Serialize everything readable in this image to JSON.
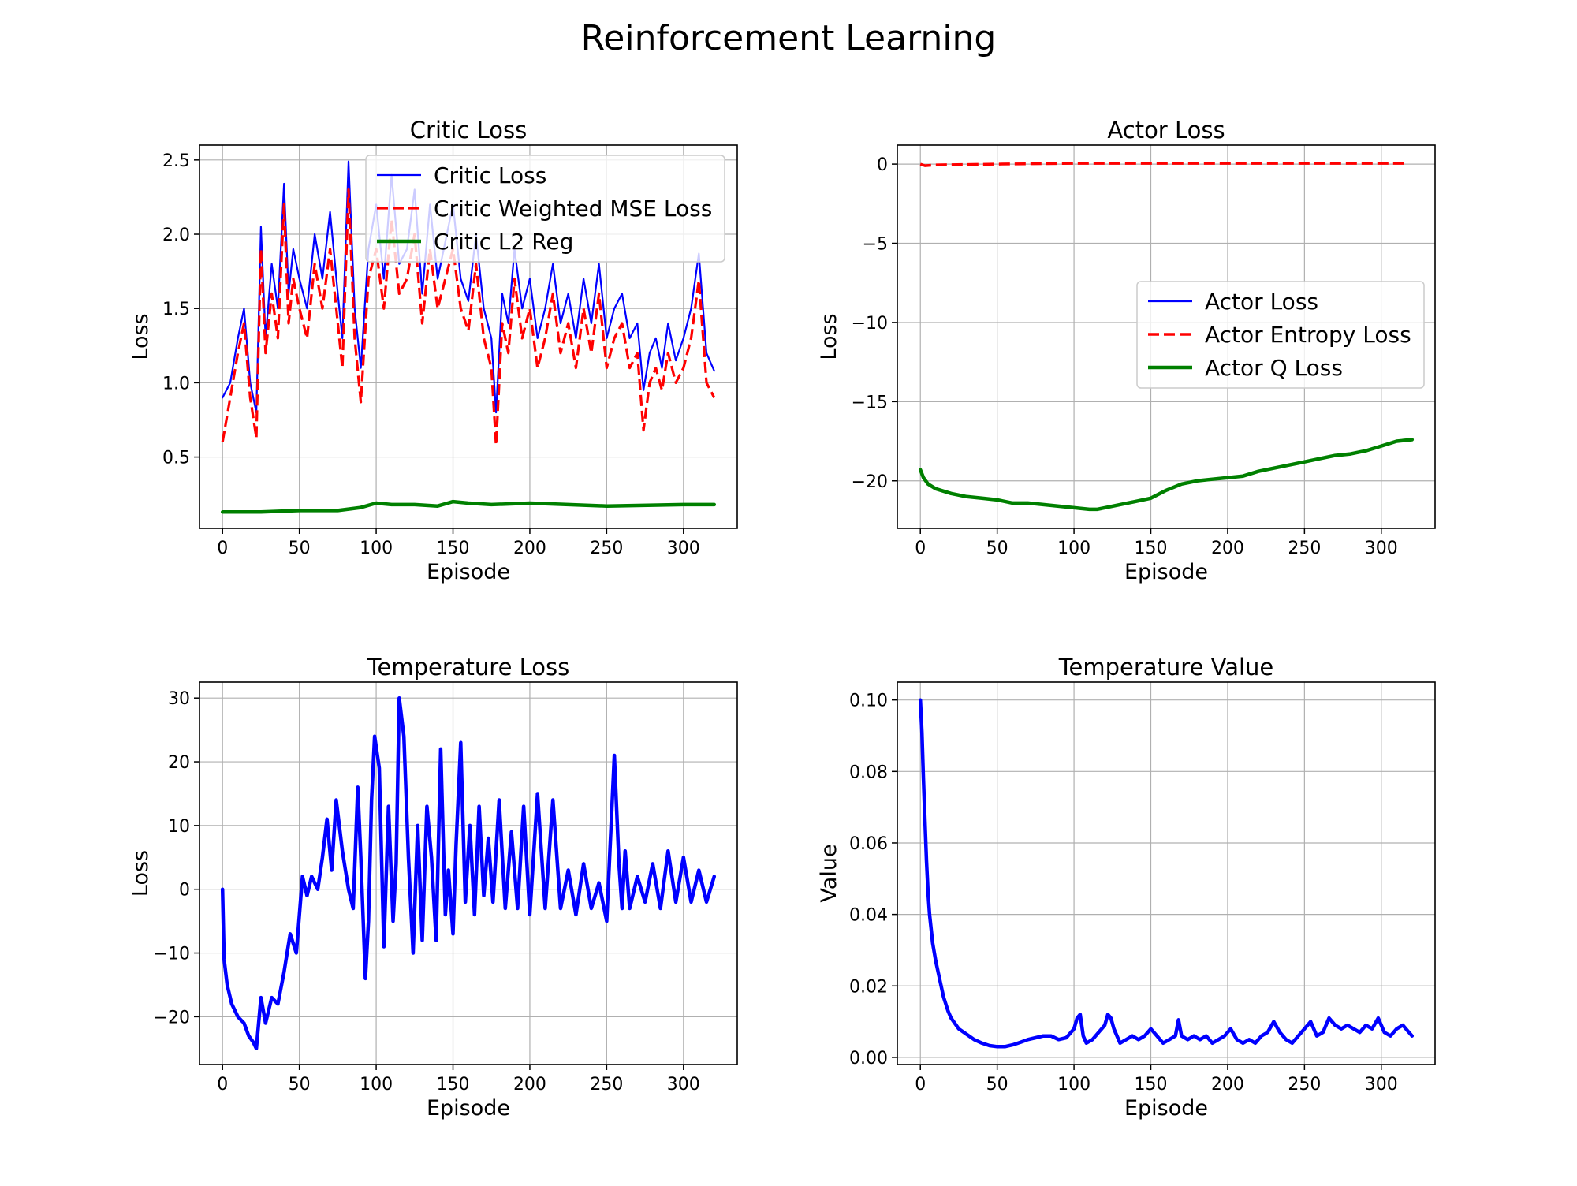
{
  "figure": {
    "title": "Reinforcement Learning"
  },
  "chart_data": [
    {
      "type": "line",
      "title": "Critic Loss",
      "xlabel": "Episode",
      "ylabel": "Loss",
      "xlim": [
        -15,
        335
      ],
      "ylim": [
        0.02,
        2.6
      ],
      "xticks": [
        0,
        50,
        100,
        150,
        200,
        250,
        300
      ],
      "yticks": [
        0.5,
        1.0,
        1.5,
        2.0,
        2.5
      ],
      "ytick_labels": [
        "0.5",
        "1.0",
        "1.5",
        "2.0",
        "2.5"
      ],
      "grid": true,
      "legend": "top-right",
      "series": [
        {
          "name": "Critic Loss",
          "color": "#0000ff",
          "style": "solid",
          "width": 2.2,
          "x": [
            0,
            5,
            10,
            14,
            18,
            22,
            25,
            28,
            32,
            36,
            40,
            43,
            46,
            50,
            55,
            60,
            65,
            70,
            75,
            78,
            82,
            86,
            90,
            95,
            100,
            105,
            110,
            115,
            120,
            125,
            130,
            135,
            140,
            145,
            150,
            155,
            160,
            165,
            170,
            175,
            178,
            182,
            186,
            190,
            195,
            200,
            205,
            210,
            215,
            220,
            225,
            230,
            235,
            240,
            245,
            250,
            255,
            260,
            265,
            270,
            274,
            278,
            282,
            286,
            290,
            295,
            300,
            305,
            310,
            315,
            320
          ],
          "y": [
            0.9,
            1.0,
            1.3,
            1.5,
            1.0,
            0.8,
            2.05,
            1.3,
            1.8,
            1.5,
            2.34,
            1.6,
            1.9,
            1.7,
            1.5,
            2.0,
            1.7,
            2.15,
            1.6,
            1.3,
            2.49,
            1.5,
            1.1,
            1.9,
            2.2,
            1.7,
            2.4,
            1.8,
            1.9,
            2.3,
            1.6,
            2.2,
            1.7,
            1.95,
            2.2,
            1.7,
            1.55,
            2.0,
            1.5,
            1.3,
            0.8,
            1.6,
            1.4,
            1.9,
            1.5,
            1.7,
            1.3,
            1.5,
            1.8,
            1.4,
            1.6,
            1.3,
            1.7,
            1.4,
            1.8,
            1.3,
            1.5,
            1.6,
            1.3,
            1.4,
            0.95,
            1.2,
            1.3,
            1.1,
            1.4,
            1.15,
            1.3,
            1.5,
            1.87,
            1.2,
            1.08
          ]
        },
        {
          "name": "Critic Weighted MSE Loss",
          "color": "#ff0000",
          "style": "dashed",
          "width": 3.2,
          "x": [
            0,
            5,
            10,
            14,
            18,
            22,
            25,
            28,
            32,
            36,
            40,
            43,
            46,
            50,
            55,
            60,
            65,
            70,
            75,
            78,
            82,
            86,
            90,
            95,
            100,
            105,
            110,
            115,
            120,
            125,
            130,
            135,
            140,
            145,
            150,
            155,
            160,
            165,
            170,
            175,
            178,
            182,
            186,
            190,
            195,
            200,
            205,
            210,
            215,
            220,
            225,
            230,
            235,
            240,
            245,
            250,
            255,
            260,
            265,
            270,
            274,
            278,
            282,
            286,
            290,
            295,
            300,
            305,
            310,
            315,
            320
          ],
          "y": [
            0.6,
            0.9,
            1.2,
            1.4,
            0.9,
            0.63,
            1.9,
            1.2,
            1.6,
            1.3,
            2.2,
            1.4,
            1.7,
            1.5,
            1.3,
            1.8,
            1.5,
            1.9,
            1.4,
            1.1,
            2.3,
            1.3,
            0.87,
            1.7,
            1.9,
            1.5,
            2.1,
            1.6,
            1.7,
            2.0,
            1.4,
            1.9,
            1.5,
            1.7,
            1.9,
            1.5,
            1.35,
            1.8,
            1.3,
            1.1,
            0.58,
            1.4,
            1.2,
            1.7,
            1.3,
            1.5,
            1.1,
            1.3,
            1.6,
            1.2,
            1.4,
            1.1,
            1.5,
            1.2,
            1.6,
            1.1,
            1.3,
            1.4,
            1.1,
            1.2,
            0.68,
            1.0,
            1.1,
            0.95,
            1.2,
            1.0,
            1.1,
            1.3,
            1.69,
            1.0,
            0.9
          ]
        },
        {
          "name": "Critic L2 Reg",
          "color": "#008000",
          "style": "solid",
          "width": 4.5,
          "x": [
            0,
            25,
            50,
            75,
            90,
            100,
            110,
            125,
            140,
            150,
            160,
            175,
            200,
            250,
            300,
            320
          ],
          "y": [
            0.13,
            0.13,
            0.14,
            0.14,
            0.16,
            0.19,
            0.18,
            0.18,
            0.17,
            0.2,
            0.19,
            0.18,
            0.19,
            0.17,
            0.18,
            0.18
          ]
        }
      ]
    },
    {
      "type": "line",
      "title": "Actor Loss",
      "xlabel": "Episode",
      "ylabel": "Loss",
      "xlim": [
        -15,
        335
      ],
      "ylim": [
        -23,
        1.2
      ],
      "xticks": [
        0,
        50,
        100,
        150,
        200,
        250,
        300
      ],
      "yticks": [
        0,
        -5,
        -10,
        -15,
        -20
      ],
      "ytick_labels": [
        "0",
        "−5",
        "−10",
        "−15",
        "−20"
      ],
      "grid": true,
      "legend": "center-right",
      "series": [
        {
          "name": "Actor Loss",
          "color": "#0000ff",
          "style": "solid",
          "width": 2.2,
          "x": [
            0,
            2,
            5,
            10,
            20,
            30,
            40,
            50,
            60,
            70,
            80,
            90,
            100,
            110,
            115,
            120,
            130,
            140,
            150,
            160,
            170,
            180,
            190,
            200,
            210,
            220,
            230,
            240,
            250,
            260,
            270,
            280,
            290,
            300,
            310,
            320
          ],
          "y": [
            -19.3,
            -19.8,
            -20.2,
            -20.5,
            -20.8,
            -21.0,
            -21.1,
            -21.2,
            -21.4,
            -21.4,
            -21.5,
            -21.6,
            -21.7,
            -21.8,
            -21.8,
            -21.7,
            -21.5,
            -21.3,
            -21.1,
            -20.6,
            -20.2,
            -20.0,
            -19.9,
            -19.8,
            -19.7,
            -19.4,
            -19.2,
            -19.0,
            -18.8,
            -18.6,
            -18.4,
            -18.3,
            -18.1,
            -17.8,
            -17.5,
            -17.4
          ]
        },
        {
          "name": "Actor Entropy Loss",
          "color": "#ff0000",
          "style": "dashed",
          "width": 3.5,
          "x": [
            0,
            3,
            10,
            50,
            100,
            150,
            200,
            250,
            300,
            315
          ],
          "y": [
            0,
            -0.1,
            -0.05,
            0.0,
            0.05,
            0.05,
            0.05,
            0.05,
            0.05,
            0.05
          ]
        },
        {
          "name": "Actor Q Loss",
          "color": "#008000",
          "style": "solid",
          "width": 4.5,
          "x": [
            0,
            2,
            5,
            10,
            20,
            30,
            40,
            50,
            60,
            70,
            80,
            90,
            100,
            110,
            115,
            120,
            130,
            140,
            150,
            160,
            170,
            180,
            190,
            200,
            210,
            220,
            230,
            240,
            250,
            260,
            270,
            280,
            290,
            300,
            310,
            320
          ],
          "y": [
            -19.3,
            -19.8,
            -20.2,
            -20.5,
            -20.8,
            -21.0,
            -21.1,
            -21.2,
            -21.4,
            -21.4,
            -21.5,
            -21.6,
            -21.7,
            -21.8,
            -21.8,
            -21.7,
            -21.5,
            -21.3,
            -21.1,
            -20.6,
            -20.2,
            -20.0,
            -19.9,
            -19.8,
            -19.7,
            -19.4,
            -19.2,
            -19.0,
            -18.8,
            -18.6,
            -18.4,
            -18.3,
            -18.1,
            -17.8,
            -17.5,
            -17.4
          ]
        }
      ]
    },
    {
      "type": "line",
      "title": "Temperature Loss",
      "xlabel": "Episode",
      "ylabel": "Loss",
      "xlim": [
        -15,
        335
      ],
      "ylim": [
        -27.5,
        32.5
      ],
      "xticks": [
        0,
        50,
        100,
        150,
        200,
        250,
        300
      ],
      "yticks": [
        30,
        20,
        10,
        0,
        -10,
        -20
      ],
      "ytick_labels": [
        "30",
        "20",
        "10",
        "0",
        "−10",
        "−20"
      ],
      "grid": true,
      "series": [
        {
          "name": "",
          "color": "#0000ff",
          "style": "solid",
          "width": 4.5,
          "x": [
            0,
            1,
            3,
            6,
            10,
            14,
            17,
            20,
            22,
            25,
            28,
            32,
            36,
            40,
            44,
            48,
            52,
            55,
            58,
            62,
            65,
            68,
            71,
            74,
            78,
            82,
            85,
            88,
            90,
            93,
            95,
            97,
            99,
            102,
            105,
            108,
            111,
            113,
            115,
            118,
            121,
            124,
            127,
            130,
            133,
            136,
            139,
            142,
            145,
            147,
            150,
            152,
            155,
            158,
            161,
            164,
            167,
            170,
            173,
            176,
            180,
            184,
            188,
            192,
            196,
            200,
            205,
            210,
            215,
            220,
            225,
            230,
            235,
            240,
            245,
            250,
            255,
            258,
            260,
            262,
            265,
            270,
            275,
            280,
            285,
            290,
            295,
            300,
            305,
            310,
            315,
            320
          ],
          "y": [
            0,
            -11,
            -15,
            -18,
            -20,
            -21,
            -23,
            -24,
            -25,
            -17,
            -21,
            -17,
            -18,
            -13,
            -7,
            -10,
            2,
            -1,
            2,
            0,
            5,
            11,
            3,
            14,
            6,
            0,
            -3,
            16,
            5,
            -14,
            -5,
            14,
            24,
            19,
            -9,
            13,
            -5,
            4,
            30,
            24,
            5,
            -10,
            10,
            -8,
            13,
            5,
            -8,
            22,
            -4,
            3,
            -7,
            7,
            23,
            -2,
            10,
            -4,
            13,
            -1,
            8,
            -2,
            14,
            -3,
            9,
            -3,
            13,
            -4,
            15,
            -3,
            14,
            -3,
            3,
            -4,
            4,
            -3,
            1,
            -5,
            21,
            4,
            -3,
            6,
            -3,
            2,
            -2,
            4,
            -3,
            6,
            -2,
            5,
            -2,
            3,
            -2,
            2
          ]
        }
      ]
    },
    {
      "type": "line",
      "title": "Temperature Value",
      "xlabel": "Episode",
      "ylabel": "Value",
      "xlim": [
        -15,
        335
      ],
      "ylim": [
        -0.002,
        0.105
      ],
      "xticks": [
        0,
        50,
        100,
        150,
        200,
        250,
        300
      ],
      "yticks": [
        0.0,
        0.02,
        0.04,
        0.06,
        0.08,
        0.1
      ],
      "ytick_labels": [
        "0.00",
        "0.02",
        "0.04",
        "0.06",
        "0.08",
        "0.10"
      ],
      "grid": true,
      "series": [
        {
          "name": "",
          "color": "#0000ff",
          "style": "solid",
          "width": 4.5,
          "x": [
            0,
            1,
            2,
            3,
            4,
            5,
            6,
            8,
            10,
            12,
            15,
            18,
            20,
            25,
            30,
            35,
            40,
            45,
            50,
            55,
            60,
            65,
            70,
            75,
            80,
            85,
            90,
            95,
            100,
            102,
            104,
            106,
            108,
            112,
            116,
            120,
            122,
            124,
            126,
            130,
            134,
            138,
            142,
            146,
            150,
            154,
            158,
            162,
            166,
            168,
            170,
            174,
            178,
            182,
            186,
            190,
            194,
            198,
            202,
            206,
            210,
            214,
            218,
            222,
            226,
            230,
            234,
            238,
            242,
            246,
            250,
            254,
            258,
            262,
            266,
            270,
            274,
            278,
            282,
            286,
            290,
            294,
            298,
            302,
            306,
            310,
            314,
            318,
            320
          ],
          "y": [
            0.1,
            0.091,
            0.078,
            0.066,
            0.055,
            0.046,
            0.04,
            0.032,
            0.027,
            0.023,
            0.017,
            0.013,
            0.011,
            0.008,
            0.0065,
            0.005,
            0.004,
            0.0033,
            0.003,
            0.003,
            0.0035,
            0.0042,
            0.005,
            0.0055,
            0.006,
            0.006,
            0.005,
            0.0055,
            0.008,
            0.011,
            0.012,
            0.006,
            0.004,
            0.005,
            0.007,
            0.009,
            0.012,
            0.011,
            0.008,
            0.004,
            0.005,
            0.006,
            0.005,
            0.006,
            0.008,
            0.006,
            0.004,
            0.005,
            0.006,
            0.0105,
            0.006,
            0.005,
            0.006,
            0.005,
            0.006,
            0.004,
            0.005,
            0.006,
            0.008,
            0.005,
            0.004,
            0.005,
            0.004,
            0.006,
            0.007,
            0.01,
            0.007,
            0.005,
            0.004,
            0.006,
            0.008,
            0.01,
            0.006,
            0.007,
            0.011,
            0.009,
            0.008,
            0.009,
            0.008,
            0.007,
            0.009,
            0.008,
            0.011,
            0.007,
            0.006,
            0.008,
            0.009,
            0.007,
            0.006
          ]
        }
      ]
    }
  ]
}
